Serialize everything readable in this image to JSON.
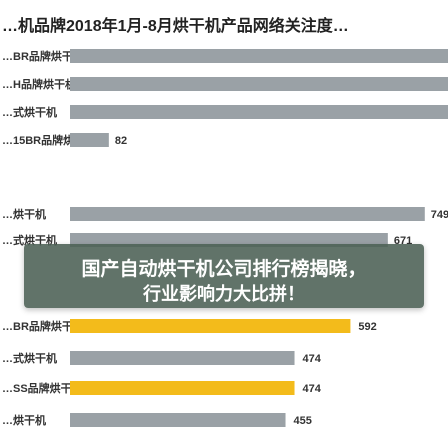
{
  "page_title": "…机品牌2018年1月-8月烘干机产品网络关注度…",
  "banner": {
    "line1": "国产自动烘干机公司排行榜揭晓，",
    "line2": "行业影响力大比拼！",
    "color": "#4b6054"
  },
  "chart_data": {
    "type": "bar",
    "orientation": "horizontal",
    "title": "…机品牌2018年1月-8月烘干机产品网络关注度…",
    "colors": {
      "gray": "#9aa1a6",
      "yellow": "#f3bb1b",
      "text": "#333333"
    },
    "top_rows": [
      {
        "label": "…BR品牌烘干机",
        "value": null,
        "color": "gray"
      },
      {
        "label": "…H品牌烘干机",
        "value": null,
        "color": "gray"
      },
      {
        "label": "…式烘干机",
        "value": null,
        "color": "gray"
      }
    ],
    "partial_rows": [
      {
        "label": "…15BR品牌烘干机",
        "value": 82
      },
      {
        "label": "…烘干机",
        "value": 749
      },
      {
        "label": "…式烘干机",
        "value": 671
      }
    ],
    "categories": [
      "…BR品牌烘干机",
      "…式烘干机",
      "…SS品牌烘干机",
      "…烘干机"
    ],
    "values": [
      592,
      474,
      474,
      455
    ],
    "bar_colors": [
      "yellow",
      "gray",
      "yellow",
      "gray"
    ],
    "xlim": [
      0,
      760
    ],
    "grid": false,
    "legend": "none"
  }
}
